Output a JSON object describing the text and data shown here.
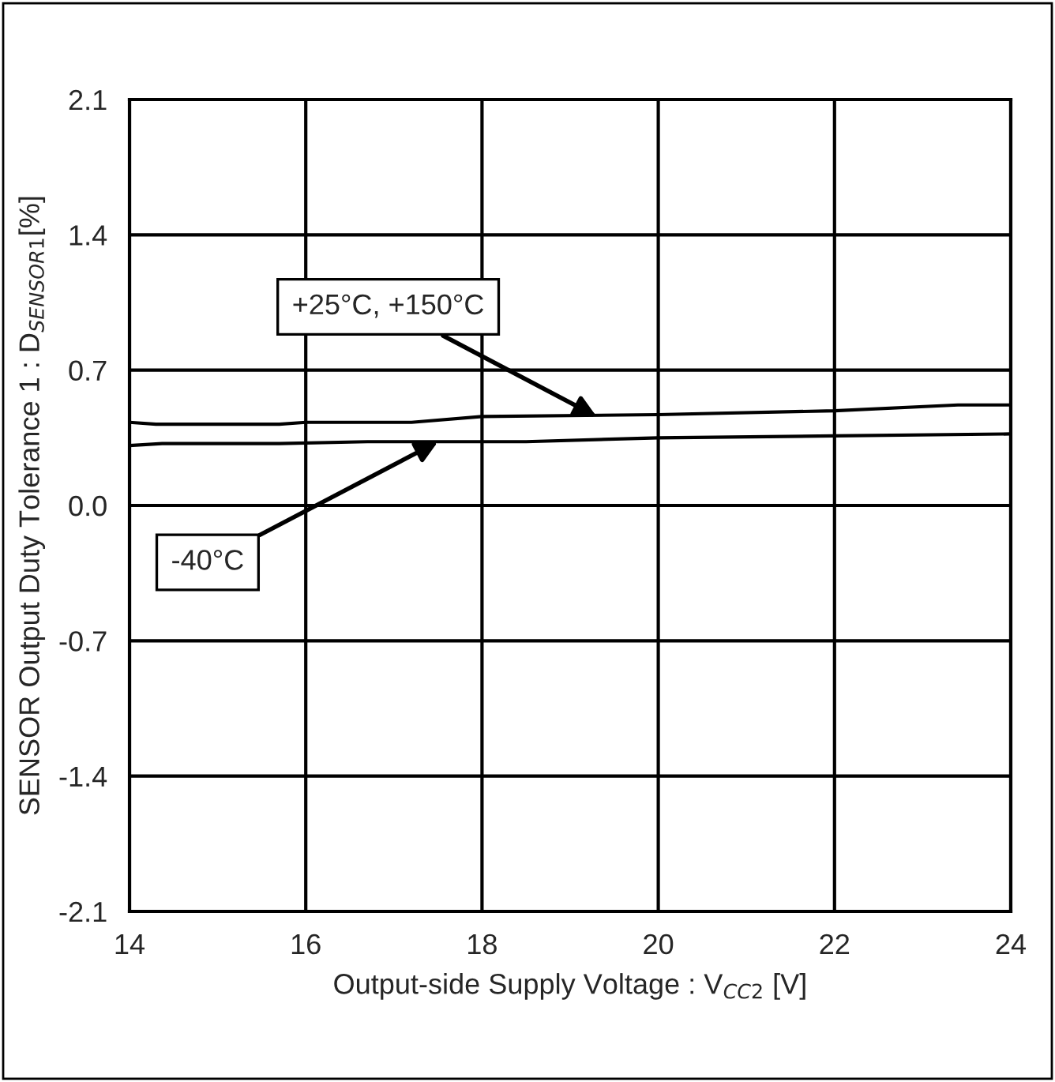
{
  "chart_data": {
    "type": "line",
    "xlabel": "Output-side Supply Voltage : V$_{CC2}$ [V]",
    "ylabel": "SENSOR Output Duty Tolerance 1 : D$_{SENSOR1}$[%]",
    "series": [
      {
        "color": "#000000",
        "x": [
          14,
          14.3,
          15.7,
          16.0,
          17.2,
          18.0,
          20.0,
          22.0,
          23.4,
          24
        ],
        "values": [
          0.43,
          0.42,
          0.42,
          0.43,
          0.43,
          0.46,
          0.47,
          0.49,
          0.52,
          0.52
        ]
      },
      {
        "color": "#000000",
        "x": [
          14,
          14.37,
          15.7,
          16.7,
          18.5,
          20.0,
          22.0,
          24
        ],
        "values": [
          0.31,
          0.32,
          0.32,
          0.33,
          0.33,
          0.35,
          0.36,
          0.37
        ]
      }
    ],
    "annotations": [
      {
        "text": "+25°C, +150°C",
        "x": 19.3,
        "y": 0.46
      },
      {
        "text": "-40°C",
        "x": 17.5,
        "y": 0.33
      }
    ],
    "xlim": [
      14,
      24
    ],
    "xticks": [
      14,
      16,
      18,
      20,
      22,
      24
    ],
    "ylim": [
      -2.1,
      2.1
    ],
    "yticks": [
      -2.1,
      -1.4,
      -0.7,
      {
        "value": 0,
        "label": "0.0"
      },
      0.7,
      1.4,
      2.1
    ],
    "grid": true,
    "line_style": "solid",
    "marker": "none"
  }
}
